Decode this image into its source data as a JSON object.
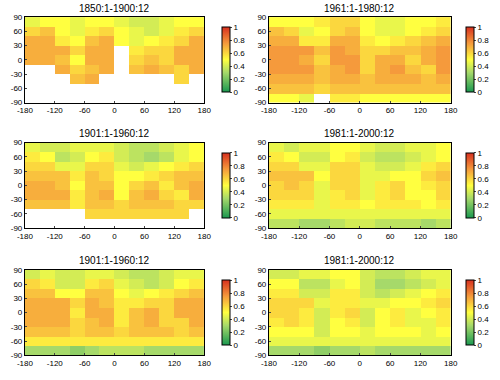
{
  "chart_data": [
    {
      "type": "heatmap",
      "title": "1850:1-1900:12",
      "x": [
        -165,
        -135,
        -105,
        -75,
        -45,
        -15,
        15,
        45,
        75,
        105,
        135,
        165
      ],
      "y": [
        -80,
        -60,
        -40,
        -20,
        0,
        20,
        40,
        60,
        80
      ],
      "values": [
        [
          null,
          null,
          null,
          null,
          null,
          null,
          null,
          null,
          null,
          null,
          null,
          null
        ],
        [
          null,
          null,
          null,
          null,
          null,
          null,
          null,
          null,
          null,
          null,
          null,
          null
        ],
        [
          null,
          null,
          null,
          0.65,
          0.7,
          null,
          null,
          null,
          null,
          null,
          0.6,
          null
        ],
        [
          null,
          null,
          0.7,
          0.6,
          0.65,
          0.7,
          null,
          0.65,
          0.7,
          0.65,
          0.6,
          0.7
        ],
        [
          0.7,
          0.7,
          0.65,
          0.5,
          0.7,
          0.7,
          null,
          0.6,
          0.65,
          0.6,
          0.7,
          0.7
        ],
        [
          0.7,
          0.7,
          0.7,
          0.6,
          0.7,
          0.7,
          null,
          0.55,
          0.6,
          0.6,
          0.7,
          0.7
        ],
        [
          0.7,
          0.7,
          0.55,
          0.5,
          0.65,
          0.7,
          0.5,
          0.45,
          0.5,
          0.55,
          0.6,
          0.7
        ],
        [
          0.6,
          0.65,
          0.5,
          0.45,
          0.55,
          0.6,
          0.5,
          0.45,
          0.4,
          0.45,
          0.55,
          0.6
        ],
        [
          0.45,
          0.5,
          0.5,
          0.45,
          0.5,
          0.5,
          0.45,
          0.4,
          0.4,
          0.45,
          0.5,
          0.5
        ]
      ],
      "xlim": [
        -180,
        180
      ],
      "xticks": [
        -180,
        -120,
        -60,
        0,
        60,
        120,
        180
      ],
      "ylim": [
        -90,
        90
      ],
      "yticks": [
        -90,
        -60,
        -30,
        0,
        30,
        60,
        90
      ],
      "colorbar": {
        "range": [
          0,
          1
        ],
        "ticks": [
          0,
          0.2,
          0.4,
          0.6,
          0.8,
          1
        ]
      }
    },
    {
      "type": "heatmap",
      "title": "1901:1-1960:12",
      "x": [
        -165,
        -135,
        -105,
        -75,
        -45,
        -15,
        15,
        45,
        75,
        105,
        135,
        165
      ],
      "y": [
        -80,
        -60,
        -40,
        -20,
        0,
        20,
        40,
        60,
        80
      ],
      "values": [
        [
          null,
          null,
          null,
          null,
          null,
          null,
          null,
          null,
          null,
          null,
          null,
          null
        ],
        [
          null,
          null,
          null,
          null,
          0.6,
          0.6,
          0.6,
          0.6,
          0.6,
          0.6,
          0.6,
          null
        ],
        [
          0.65,
          0.65,
          0.65,
          0.55,
          0.65,
          0.65,
          0.6,
          0.65,
          0.65,
          0.65,
          0.6,
          0.6
        ],
        [
          0.7,
          0.7,
          0.7,
          0.55,
          0.65,
          0.7,
          0.5,
          0.65,
          0.7,
          0.6,
          0.55,
          0.7
        ],
        [
          0.7,
          0.7,
          0.65,
          0.5,
          0.65,
          0.65,
          0.5,
          0.6,
          0.65,
          0.55,
          0.65,
          0.7
        ],
        [
          0.65,
          0.65,
          0.65,
          0.55,
          0.65,
          0.6,
          0.5,
          0.5,
          0.55,
          0.6,
          0.65,
          0.65
        ],
        [
          0.6,
          0.6,
          0.45,
          0.45,
          0.6,
          0.6,
          0.45,
          0.4,
          0.45,
          0.5,
          0.55,
          0.6
        ],
        [
          0.55,
          0.5,
          0.35,
          0.4,
          0.5,
          0.55,
          0.4,
          0.35,
          0.3,
          0.35,
          0.45,
          0.5
        ],
        [
          0.45,
          0.4,
          0.4,
          0.45,
          0.45,
          0.45,
          0.4,
          0.35,
          0.35,
          0.4,
          0.45,
          0.5
        ]
      ],
      "xlim": [
        -180,
        180
      ],
      "xticks": [
        -180,
        -120,
        -60,
        0,
        60,
        120,
        180
      ],
      "ylim": [
        -90,
        90
      ],
      "yticks": [
        -90,
        -60,
        -30,
        0,
        30,
        60,
        90
      ],
      "colorbar": {
        "range": [
          0,
          1
        ],
        "ticks": [
          0,
          0.2,
          0.4,
          0.6,
          0.8,
          1
        ]
      }
    },
    {
      "type": "heatmap",
      "title": "1901:1-1960:12",
      "x": [
        -165,
        -135,
        -105,
        -75,
        -45,
        -15,
        15,
        45,
        75,
        105,
        135,
        165
      ],
      "y": [
        -80,
        -60,
        -40,
        -20,
        0,
        20,
        40,
        60,
        80
      ],
      "values": [
        [
          0.3,
          0.3,
          0.3,
          0.25,
          0.3,
          0.35,
          0.35,
          0.35,
          0.3,
          0.3,
          0.3,
          0.3
        ],
        [
          0.55,
          0.55,
          0.55,
          0.55,
          0.55,
          0.55,
          0.55,
          0.55,
          0.55,
          0.55,
          0.55,
          0.55
        ],
        [
          0.65,
          0.65,
          0.65,
          0.6,
          0.65,
          0.65,
          0.6,
          0.65,
          0.65,
          0.65,
          0.6,
          0.65
        ],
        [
          0.7,
          0.7,
          0.7,
          0.6,
          0.65,
          0.7,
          0.55,
          0.65,
          0.7,
          0.6,
          0.6,
          0.7
        ],
        [
          0.7,
          0.7,
          0.7,
          0.55,
          0.7,
          0.7,
          0.55,
          0.65,
          0.7,
          0.6,
          0.7,
          0.7
        ],
        [
          0.7,
          0.7,
          0.7,
          0.6,
          0.7,
          0.65,
          0.55,
          0.55,
          0.6,
          0.6,
          0.7,
          0.7
        ],
        [
          0.65,
          0.65,
          0.5,
          0.5,
          0.65,
          0.65,
          0.5,
          0.45,
          0.5,
          0.55,
          0.6,
          0.65
        ],
        [
          0.6,
          0.55,
          0.4,
          0.4,
          0.55,
          0.6,
          0.45,
          0.4,
          0.35,
          0.4,
          0.5,
          0.55
        ],
        [
          0.4,
          0.45,
          0.4,
          0.4,
          0.45,
          0.45,
          0.4,
          0.35,
          0.35,
          0.4,
          0.45,
          0.45
        ]
      ],
      "xlim": [
        -180,
        180
      ],
      "xticks": [
        -180,
        -120,
        -60,
        0,
        60,
        120,
        180
      ],
      "ylim": [
        -90,
        90
      ],
      "yticks": [
        -90,
        -60,
        -30,
        0,
        30,
        60,
        90
      ],
      "colorbar": {
        "range": [
          0,
          1
        ],
        "ticks": [
          0,
          0.2,
          0.4,
          0.6,
          0.8,
          1
        ]
      }
    },
    {
      "type": "heatmap",
      "title": "1961:1-1980:12",
      "x": [
        -165,
        -135,
        -105,
        -75,
        -45,
        -15,
        15,
        45,
        75,
        105,
        135,
        165
      ],
      "y": [
        -80,
        -60,
        -40,
        -20,
        0,
        20,
        40,
        60,
        80
      ],
      "values": [
        [
          0.5,
          0.5,
          0.45,
          null,
          0.55,
          0.55,
          0.5,
          0.5,
          0.5,
          0.5,
          0.5,
          0.5
        ],
        [
          0.65,
          0.65,
          0.65,
          0.6,
          0.65,
          0.65,
          0.65,
          0.65,
          0.65,
          0.65,
          0.65,
          0.65
        ],
        [
          0.7,
          0.7,
          0.7,
          0.65,
          0.7,
          0.7,
          0.65,
          0.7,
          0.7,
          0.7,
          0.65,
          0.7
        ],
        [
          0.75,
          0.75,
          0.75,
          0.65,
          0.7,
          0.75,
          0.6,
          0.7,
          0.75,
          0.65,
          0.6,
          0.75
        ],
        [
          0.75,
          0.75,
          0.7,
          0.6,
          0.75,
          0.75,
          0.6,
          0.7,
          0.7,
          0.6,
          0.7,
          0.75
        ],
        [
          0.75,
          0.75,
          0.75,
          0.65,
          0.75,
          0.7,
          0.6,
          0.6,
          0.65,
          0.65,
          0.7,
          0.75
        ],
        [
          0.7,
          0.7,
          0.55,
          0.55,
          0.7,
          0.7,
          0.55,
          0.5,
          0.55,
          0.6,
          0.65,
          0.7
        ],
        [
          0.65,
          0.6,
          0.45,
          0.5,
          0.6,
          0.65,
          0.5,
          0.45,
          0.45,
          0.5,
          0.55,
          0.6
        ],
        [
          0.5,
          0.5,
          0.5,
          0.55,
          0.6,
          0.6,
          0.5,
          0.45,
          0.45,
          0.5,
          0.5,
          0.55
        ]
      ],
      "xlim": [
        -180,
        180
      ],
      "xticks": [
        -180,
        -120,
        -60,
        0,
        60,
        120,
        180
      ],
      "ylim": [
        -90,
        90
      ],
      "yticks": [
        -90,
        -60,
        -30,
        0,
        30,
        60,
        90
      ],
      "colorbar": {
        "range": [
          0,
          1
        ],
        "ticks": [
          0,
          0.2,
          0.4,
          0.6,
          0.8,
          1
        ]
      }
    },
    {
      "type": "heatmap",
      "title": "1981:1-2000:12",
      "x": [
        -165,
        -135,
        -105,
        -75,
        -45,
        -15,
        15,
        45,
        75,
        105,
        135,
        165
      ],
      "y": [
        -80,
        -60,
        -40,
        -20,
        0,
        20,
        40,
        60,
        80
      ],
      "values": [
        [
          0.35,
          0.35,
          0.3,
          0.3,
          0.35,
          0.4,
          0.4,
          0.35,
          0.35,
          0.35,
          0.3,
          0.35
        ],
        [
          0.45,
          0.45,
          0.45,
          0.45,
          0.45,
          0.45,
          0.45,
          0.45,
          0.45,
          0.45,
          0.45,
          0.45
        ],
        [
          0.55,
          0.55,
          0.55,
          0.45,
          0.55,
          0.55,
          0.5,
          0.55,
          0.55,
          0.55,
          0.5,
          0.55
        ],
        [
          0.6,
          0.6,
          0.6,
          0.45,
          0.55,
          0.6,
          0.45,
          0.55,
          0.6,
          0.5,
          0.5,
          0.6
        ],
        [
          0.6,
          0.65,
          0.6,
          0.45,
          0.6,
          0.6,
          0.45,
          0.55,
          0.6,
          0.5,
          0.55,
          0.6
        ],
        [
          0.65,
          0.65,
          0.65,
          0.5,
          0.6,
          0.6,
          0.45,
          0.45,
          0.5,
          0.5,
          0.6,
          0.65
        ],
        [
          0.6,
          0.6,
          0.45,
          0.45,
          0.6,
          0.6,
          0.45,
          0.4,
          0.4,
          0.45,
          0.55,
          0.6
        ],
        [
          0.55,
          0.5,
          0.4,
          0.4,
          0.5,
          0.55,
          0.4,
          0.35,
          0.35,
          0.4,
          0.45,
          0.5
        ],
        [
          0.45,
          0.4,
          0.45,
          0.45,
          0.5,
          0.5,
          0.45,
          0.4,
          0.4,
          0.45,
          0.45,
          0.5
        ]
      ],
      "xlim": [
        -180,
        180
      ],
      "xticks": [
        -180,
        -120,
        -60,
        0,
        60,
        120,
        180
      ],
      "ylim": [
        -90,
        90
      ],
      "yticks": [
        -90,
        -60,
        -30,
        0,
        30,
        60,
        90
      ],
      "colorbar": {
        "range": [
          0,
          1
        ],
        "ticks": [
          0,
          0.2,
          0.4,
          0.6,
          0.8,
          1
        ]
      }
    },
    {
      "type": "heatmap",
      "title": "1981:1-2000:12",
      "x": [
        -165,
        -135,
        -105,
        -75,
        -45,
        -15,
        15,
        45,
        75,
        105,
        135,
        165
      ],
      "y": [
        -80,
        -60,
        -40,
        -20,
        0,
        20,
        40,
        60,
        80
      ],
      "values": [
        [
          0.3,
          0.3,
          0.3,
          0.25,
          0.3,
          0.3,
          0.35,
          0.3,
          0.3,
          0.3,
          0.3,
          0.3
        ],
        [
          0.45,
          0.45,
          0.45,
          0.45,
          0.45,
          0.45,
          0.45,
          0.45,
          0.45,
          0.45,
          0.45,
          0.45
        ],
        [
          0.5,
          0.5,
          0.5,
          0.4,
          0.5,
          0.5,
          0.45,
          0.5,
          0.5,
          0.5,
          0.45,
          0.5
        ],
        [
          0.55,
          0.6,
          0.55,
          0.4,
          0.5,
          0.55,
          0.4,
          0.5,
          0.55,
          0.45,
          0.45,
          0.55
        ],
        [
          0.6,
          0.6,
          0.55,
          0.4,
          0.55,
          0.6,
          0.4,
          0.5,
          0.55,
          0.45,
          0.5,
          0.55
        ],
        [
          0.6,
          0.6,
          0.6,
          0.45,
          0.55,
          0.55,
          0.45,
          0.45,
          0.5,
          0.5,
          0.55,
          0.6
        ],
        [
          0.55,
          0.55,
          0.4,
          0.4,
          0.55,
          0.55,
          0.4,
          0.35,
          0.4,
          0.45,
          0.5,
          0.55
        ],
        [
          0.5,
          0.5,
          0.35,
          0.35,
          0.45,
          0.5,
          0.4,
          0.3,
          0.3,
          0.35,
          0.4,
          0.45
        ],
        [
          0.4,
          0.4,
          0.45,
          0.45,
          0.5,
          0.5,
          0.4,
          0.35,
          0.35,
          0.4,
          0.45,
          0.45
        ]
      ],
      "xlim": [
        -180,
        180
      ],
      "xticks": [
        -180,
        -120,
        -60,
        0,
        60,
        120,
        180
      ],
      "ylim": [
        -90,
        90
      ],
      "yticks": [
        -90,
        -60,
        -30,
        0,
        30,
        60,
        90
      ],
      "colorbar": {
        "range": [
          0,
          1
        ],
        "ticks": [
          0,
          0.2,
          0.4,
          0.6,
          0.8,
          1
        ]
      }
    }
  ]
}
